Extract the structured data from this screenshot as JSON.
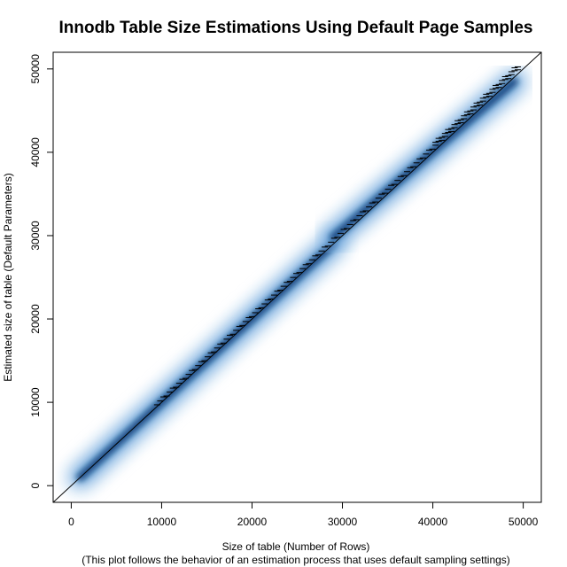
{
  "chart_data": {
    "type": "scatter",
    "title": "Innodb Table Size Estimations Using Default Page Samples",
    "xlabel": "Size of table (Number of Rows)",
    "xlabel_note": "(This plot follows the behavior of an estimation process that uses default sampling settings)",
    "ylabel": "Estimated size of table (Default Parameters)",
    "xlim": [
      -2000,
      52000
    ],
    "ylim": [
      -2000,
      52000
    ],
    "x_ticks": [
      0,
      10000,
      20000,
      30000,
      40000,
      50000
    ],
    "y_ticks": [
      0,
      10000,
      20000,
      30000,
      40000,
      50000
    ],
    "x_tick_labels": [
      "0",
      "10000",
      "20000",
      "30000",
      "40000",
      "50000"
    ],
    "y_tick_labels": [
      "0",
      "10000",
      "20000",
      "30000",
      "40000",
      "50000"
    ],
    "reference_line": {
      "type": "identity",
      "from": [
        -2000,
        -2000
      ],
      "to": [
        52000,
        52000
      ]
    },
    "density": {
      "color": "#0a3f7a",
      "x_range": [
        1000,
        49000
      ],
      "segments": [
        {
          "from": [
            1000,
            1000
          ],
          "to": [
            29000,
            29000
          ],
          "spread": 0.02
        },
        {
          "from": [
            29000,
            29800
          ],
          "to": [
            49000,
            48500
          ],
          "spread": 0.03
        }
      ]
    },
    "outlier_dashes": {
      "x_range": [
        9500,
        49500
      ],
      "step": 350,
      "note": "short horizontal tick marks above the density band"
    },
    "grid": false,
    "legend": "none"
  }
}
